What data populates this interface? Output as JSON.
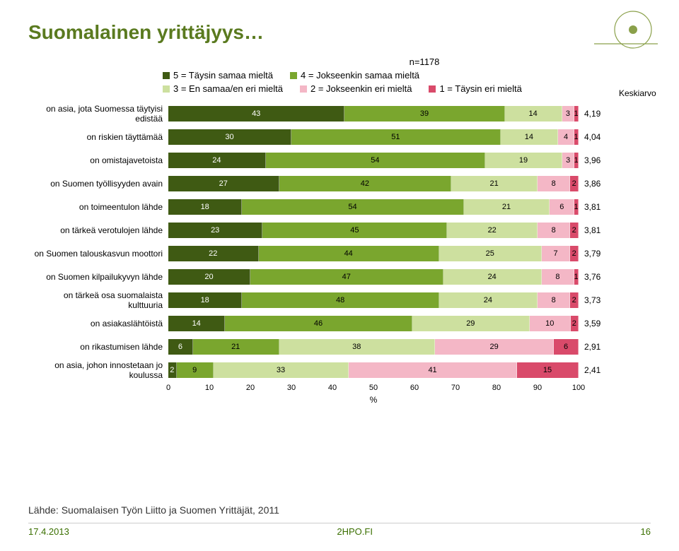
{
  "title": "Suomalainen yrittäjyys…",
  "n_label": "n=1178",
  "axis": {
    "ticks": [
      0,
      10,
      20,
      30,
      40,
      50,
      60,
      70,
      80,
      90,
      100
    ],
    "label": "%"
  },
  "legend": {
    "items": [
      {
        "label": "5 = Täysin samaa mieltä",
        "color": "#3f5a13"
      },
      {
        "label": "4 = Jokseenkin samaa mieltä",
        "color": "#7aa62e"
      },
      {
        "label": "3 = En samaa/en eri mieltä",
        "color": "#cde09f"
      },
      {
        "label": "2 = Jokseenkin eri mieltä",
        "color": "#f4b7c6"
      },
      {
        "label": "1 = Täysin eri mieltä",
        "color": "#d94a6a"
      }
    ],
    "mean_label": "Keskiarvo"
  },
  "colors": [
    "#3f5a13",
    "#7aa62e",
    "#cde09f",
    "#f4b7c6",
    "#d94a6a"
  ],
  "rows": [
    {
      "label": "on asia, jota Suomessa täytyisi edistää",
      "values": [
        43,
        39,
        14,
        3,
        1
      ],
      "mean": "4,19"
    },
    {
      "label": "on riskien täyttämää",
      "values": [
        30,
        51,
        14,
        4,
        1
      ],
      "mean": "4,04"
    },
    {
      "label": "on omistajavetoista",
      "values": [
        24,
        54,
        19,
        3,
        1
      ],
      "mean": "3,96"
    },
    {
      "label": "on Suomen työllisyyden avain",
      "values": [
        27,
        42,
        21,
        8,
        2
      ],
      "mean": "3,86"
    },
    {
      "label": "on toimeentulon lähde",
      "values": [
        18,
        54,
        21,
        6,
        1
      ],
      "mean": "3,81"
    },
    {
      "label": "on tärkeä verotulojen lähde",
      "values": [
        23,
        45,
        22,
        8,
        2
      ],
      "mean": "3,81"
    },
    {
      "label": "on Suomen talouskasvun moottori",
      "values": [
        22,
        44,
        25,
        7,
        2
      ],
      "mean": "3,79"
    },
    {
      "label": "on Suomen kilpailukyvyn lähde",
      "values": [
        20,
        47,
        24,
        8,
        1
      ],
      "mean": "3,76"
    },
    {
      "label": "on tärkeä osa suomalaista kulttuuria",
      "values": [
        18,
        48,
        24,
        8,
        2
      ],
      "mean": "3,73"
    },
    {
      "label": "on asiakaslähtöistä",
      "values": [
        14,
        46,
        29,
        10,
        2
      ],
      "mean": "3,59"
    },
    {
      "label": "on rikastumisen lähde",
      "values": [
        6,
        21,
        38,
        29,
        6
      ],
      "mean": "2,91"
    },
    {
      "label": "on asia, johon innostetaan jo koulussa",
      "values": [
        2,
        9,
        33,
        41,
        15
      ],
      "mean": "2,41"
    }
  ],
  "source": "Lähde: Suomalaisen Työn Liitto ja Suomen Yrittäjät, 2011",
  "footer": {
    "date": "17.4.2013",
    "brand": "2HPO.FI",
    "page": "16"
  },
  "logo_color": "#8aa04a"
}
